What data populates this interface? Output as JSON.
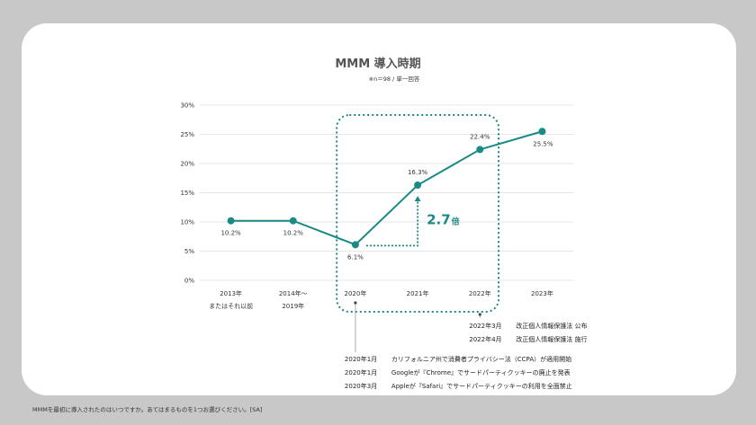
{
  "chart_data": {
    "type": "line",
    "title": "MMM 導入時期",
    "subtitle": "※n＝98 / 単一回答",
    "categories": [
      [
        "2013年",
        "またはそれ以前"
      ],
      [
        "2014年～",
        "2019年"
      ],
      [
        "2020年"
      ],
      [
        "2021年"
      ],
      [
        "2022年"
      ],
      [
        "2023年"
      ]
    ],
    "series": [
      {
        "values": [
          10.2,
          10.2,
          6.1,
          16.3,
          22.4,
          25.5
        ],
        "labels": [
          "10.2%",
          "10.2%",
          "6.1%",
          "16.3%",
          "22.4%",
          "25.5%"
        ]
      }
    ],
    "yticks": [
      "0%",
      "5%",
      "10%",
      "15%",
      "20%",
      "25%",
      "30%"
    ],
    "ylim": [
      0,
      30
    ],
    "grid": true,
    "color": "#1a8a85",
    "annotation": {
      "value": "2.7",
      "suffix": "倍",
      "from_index": 2,
      "to_index": 3
    },
    "highlight_range": [
      2,
      4
    ]
  },
  "events": {
    "group_2022": [
      {
        "date": "2022年3月",
        "text": "改正個人情報保護法 公布"
      },
      {
        "date": "2022年4月",
        "text": "改正個人情報保護法 施行"
      }
    ],
    "group_2020": [
      {
        "date": "2020年1月",
        "text": "カリフォルニア州で消費者プライバシー法（CCPA）が適用開始"
      },
      {
        "date": "2020年1月",
        "text": "Googleが『Chrome』でサードパーティクッキーの廃止を発表"
      },
      {
        "date": "2020年3月",
        "text": "Appleが『Safari』でサードパーティクッキーの利用を全面禁止"
      }
    ]
  },
  "footnote": "MMMを最初に導入されたのはいつですか。あてはまるものを1つお選びください。[SA]"
}
